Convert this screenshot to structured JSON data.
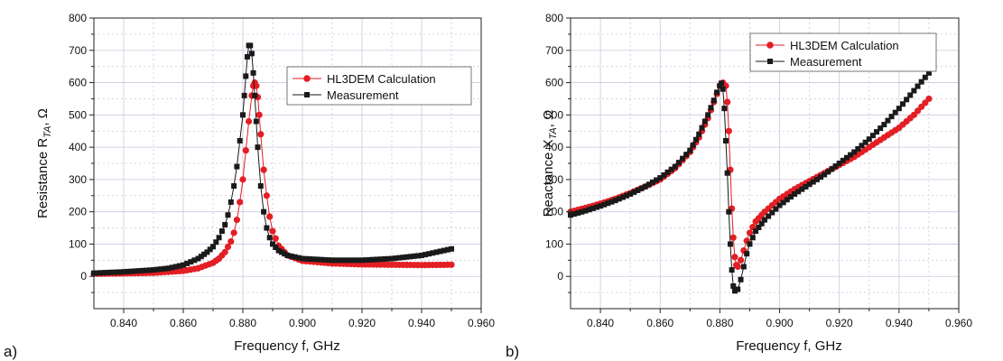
{
  "chart_data": [
    {
      "type": "scatter",
      "panel_label": "a)",
      "xlabel": "Frequency f, GHz",
      "ylabel": "Resistance R_TA, Ω",
      "ylabel_main": "Resistance R",
      "ylabel_sub": "TA",
      "ylabel_tail": ", Ω",
      "xlim": [
        0.83,
        0.96
      ],
      "ylim": [
        -100,
        800
      ],
      "xticks": [
        "0.840",
        "0.860",
        "0.880",
        "0.900",
        "0.920",
        "0.940",
        "0.960"
      ],
      "yticks": [
        "0",
        "100",
        "200",
        "300",
        "400",
        "500",
        "600",
        "700",
        "800"
      ],
      "grid": true,
      "legend_position": "top-right",
      "series": [
        {
          "name": "HL3DEM Calculation",
          "color": "#e31e24",
          "marker": "circle",
          "x": [
            0.83,
            0.84,
            0.85,
            0.86,
            0.865,
            0.87,
            0.872,
            0.874,
            0.876,
            0.877,
            0.878,
            0.879,
            0.88,
            0.881,
            0.882,
            0.883,
            0.8835,
            0.884,
            0.8845,
            0.885,
            0.8855,
            0.886,
            0.887,
            0.888,
            0.889,
            0.89,
            0.892,
            0.895,
            0.9,
            0.91,
            0.92,
            0.93,
            0.94,
            0.95
          ],
          "y": [
            8,
            9,
            11,
            17,
            25,
            42,
            55,
            75,
            108,
            135,
            175,
            230,
            300,
            390,
            480,
            560,
            590,
            600,
            590,
            555,
            500,
            440,
            330,
            250,
            185,
            140,
            95,
            65,
            48,
            40,
            37,
            36,
            35,
            36
          ]
        },
        {
          "name": "Measurement",
          "color": "#1a1a1a",
          "marker": "square",
          "x": [
            0.83,
            0.84,
            0.85,
            0.855,
            0.86,
            0.865,
            0.868,
            0.87,
            0.872,
            0.874,
            0.875,
            0.876,
            0.877,
            0.878,
            0.879,
            0.88,
            0.8805,
            0.881,
            0.8815,
            0.882,
            0.8825,
            0.883,
            0.8835,
            0.884,
            0.8845,
            0.885,
            0.886,
            0.887,
            0.888,
            0.889,
            0.89,
            0.892,
            0.895,
            0.9,
            0.91,
            0.92,
            0.93,
            0.94,
            0.95
          ],
          "y": [
            10,
            14,
            20,
            25,
            35,
            55,
            75,
            92,
            120,
            160,
            190,
            230,
            280,
            340,
            420,
            500,
            560,
            620,
            680,
            715,
            715,
            690,
            630,
            560,
            480,
            400,
            280,
            200,
            150,
            120,
            100,
            80,
            65,
            55,
            50,
            50,
            55,
            65,
            85
          ]
        }
      ]
    },
    {
      "type": "scatter",
      "panel_label": "b)",
      "xlabel": "Frequency f, GHz",
      "ylabel": "Reactance X_TA, Ω",
      "ylabel_main": "Reactance X",
      "ylabel_sub": "TA",
      "ylabel_tail": ", Ω",
      "xlim": [
        0.83,
        0.96
      ],
      "ylim": [
        -100,
        800
      ],
      "xticks": [
        "0.840",
        "0.860",
        "0.880",
        "0.900",
        "0.920",
        "0.940",
        "0.960"
      ],
      "yticks": [
        "0",
        "100",
        "200",
        "300",
        "400",
        "500",
        "600",
        "700",
        "800"
      ],
      "grid": true,
      "legend_position": "top-right",
      "series": [
        {
          "name": "HL3DEM Calculation",
          "color": "#e31e24",
          "marker": "circle",
          "x": [
            0.83,
            0.835,
            0.84,
            0.845,
            0.85,
            0.855,
            0.86,
            0.865,
            0.87,
            0.873,
            0.876,
            0.878,
            0.88,
            0.881,
            0.882,
            0.8825,
            0.883,
            0.8835,
            0.884,
            0.8845,
            0.885,
            0.8855,
            0.886,
            0.887,
            0.888,
            0.889,
            0.89,
            0.892,
            0.895,
            0.9,
            0.905,
            0.91,
            0.915,
            0.92,
            0.925,
            0.93,
            0.935,
            0.94,
            0.945,
            0.95
          ],
          "y": [
            200,
            212,
            225,
            240,
            258,
            278,
            300,
            335,
            385,
            430,
            490,
            540,
            590,
            600,
            590,
            540,
            450,
            330,
            210,
            120,
            60,
            35,
            30,
            50,
            80,
            110,
            135,
            170,
            200,
            240,
            270,
            295,
            320,
            345,
            370,
            400,
            430,
            460,
            500,
            550
          ]
        },
        {
          "name": "Measurement",
          "color": "#1a1a1a",
          "marker": "square",
          "x": [
            0.83,
            0.835,
            0.84,
            0.845,
            0.85,
            0.855,
            0.86,
            0.865,
            0.87,
            0.873,
            0.876,
            0.878,
            0.879,
            0.88,
            0.8805,
            0.881,
            0.8815,
            0.882,
            0.8825,
            0.883,
            0.8835,
            0.884,
            0.8845,
            0.885,
            0.886,
            0.887,
            0.888,
            0.889,
            0.89,
            0.892,
            0.895,
            0.9,
            0.905,
            0.91,
            0.915,
            0.92,
            0.925,
            0.93,
            0.935,
            0.94,
            0.945,
            0.95
          ],
          "y": [
            190,
            203,
            218,
            235,
            255,
            278,
            305,
            340,
            390,
            440,
            500,
            545,
            570,
            590,
            598,
            580,
            520,
            420,
            320,
            200,
            100,
            20,
            -30,
            -45,
            -40,
            -10,
            30,
            70,
            100,
            140,
            175,
            220,
            255,
            285,
            315,
            350,
            385,
            425,
            470,
            520,
            575,
            630
          ]
        }
      ]
    }
  ]
}
